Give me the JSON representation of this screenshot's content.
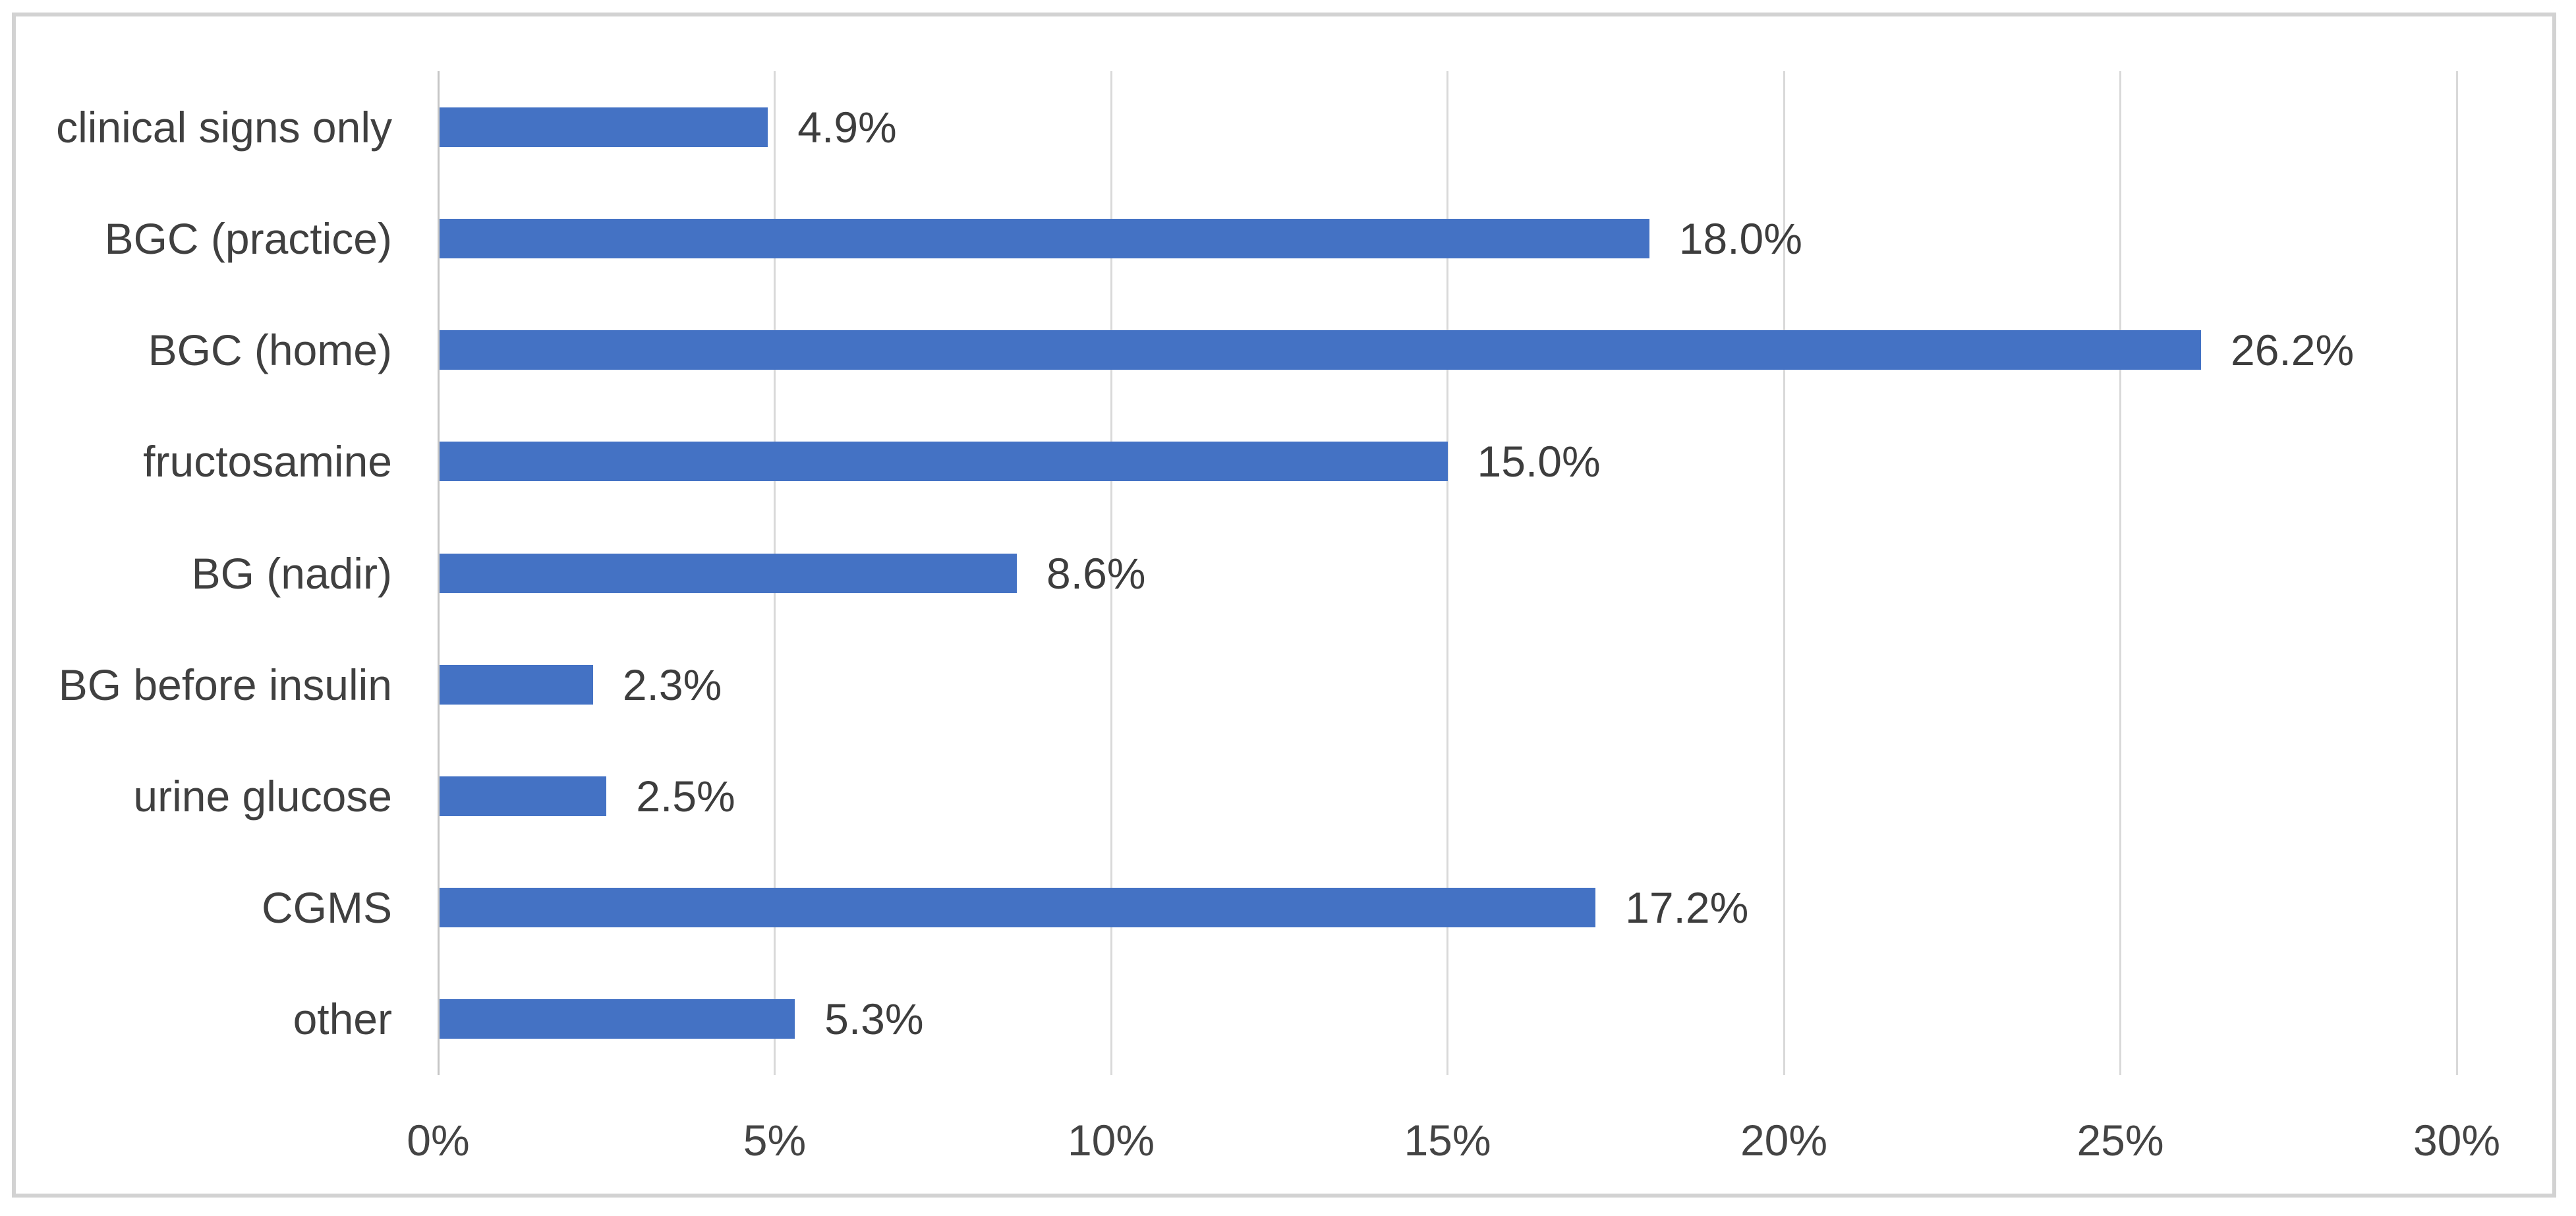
{
  "chart_data": {
    "type": "bar",
    "orientation": "horizontal",
    "title": "",
    "xlabel": "",
    "ylabel": "",
    "categories": [
      "clinical signs only",
      "BGC (practice)",
      "BGC (home)",
      "fructosamine",
      "BG (nadir)",
      "BG before insulin",
      "urine glucose",
      "CGMS",
      "other"
    ],
    "values": [
      4.9,
      18.0,
      26.2,
      15.0,
      8.6,
      2.3,
      2.5,
      17.2,
      5.3
    ],
    "value_labels": [
      "4.9%",
      "18.0%",
      "26.2%",
      "15.0%",
      "8.6%",
      "2.3%",
      "2.5%",
      "17.2%",
      "5.3%"
    ],
    "x_ticks": [
      {
        "value": 0,
        "label": "0%"
      },
      {
        "value": 5,
        "label": "5%"
      },
      {
        "value": 10,
        "label": "10%"
      },
      {
        "value": 15,
        "label": "15%"
      },
      {
        "value": 20,
        "label": "20%"
      },
      {
        "value": 25,
        "label": "25%"
      },
      {
        "value": 30,
        "label": "30%"
      }
    ],
    "xlim": [
      0,
      30
    ],
    "grid": true,
    "legend": "none",
    "colors": {
      "bar": "#4472C4",
      "gridline": "#D9D9D9",
      "axis_line": "#C6C6C6",
      "text": "#404040",
      "frame_border": "#D2D2D2",
      "background": "#FFFFFF"
    }
  }
}
